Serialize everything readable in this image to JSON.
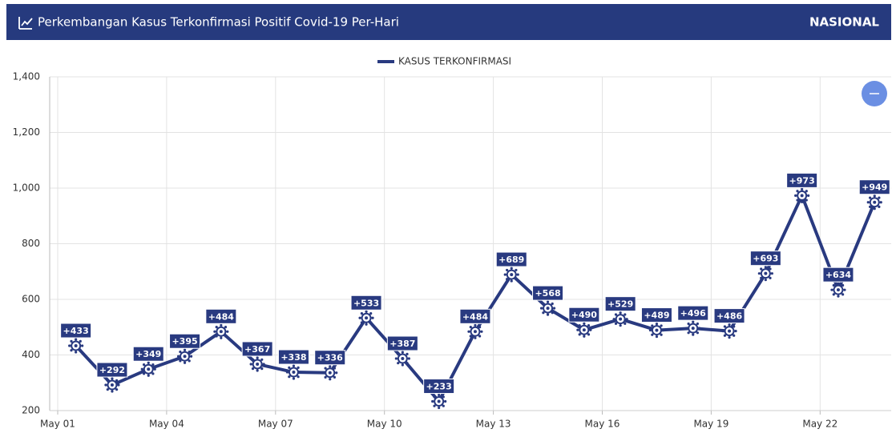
{
  "header": {
    "title": "Perkembangan Kasus Terkonfirmasi Positif Covid-19 Per-Hari",
    "region": "NASIONAL"
  },
  "chart_data": {
    "type": "line",
    "categories": [
      "May 01",
      null,
      null,
      "May 04",
      null,
      null,
      "May 07",
      null,
      null,
      "May 10",
      null,
      null,
      "May 13",
      null,
      null,
      "May 16",
      null,
      null,
      "May 19",
      null,
      null,
      "May 22",
      null
    ],
    "series": [
      {
        "name": "KASUS TERKONFIRMASI",
        "color": "#293a80",
        "values": [
          433,
          292,
          349,
          395,
          484,
          367,
          338,
          336,
          533,
          387,
          233,
          484,
          689,
          568,
          490,
          529,
          489,
          496,
          486,
          693,
          973,
          634,
          949
        ],
        "value_labels": [
          "+433",
          "+292",
          "+349",
          "+395",
          "+484",
          "+367",
          "+338",
          "+336",
          "+533",
          "+387",
          "+233",
          "+484",
          "+689",
          "+568",
          "+490",
          "+529",
          "+489",
          "+496",
          "+486",
          "+693",
          "+973",
          "+634",
          "+949"
        ]
      }
    ],
    "ylim": [
      200,
      1400
    ],
    "yticks": [
      {
        "value": 200,
        "label": "200"
      },
      {
        "value": 400,
        "label": "400"
      },
      {
        "value": 600,
        "label": "600"
      },
      {
        "value": 800,
        "label": "800"
      },
      {
        "value": 1000,
        "label": "1,000"
      },
      {
        "value": 1200,
        "label": "1,200"
      },
      {
        "value": 1400,
        "label": "1,400"
      }
    ],
    "grid": true,
    "legend": "top"
  }
}
